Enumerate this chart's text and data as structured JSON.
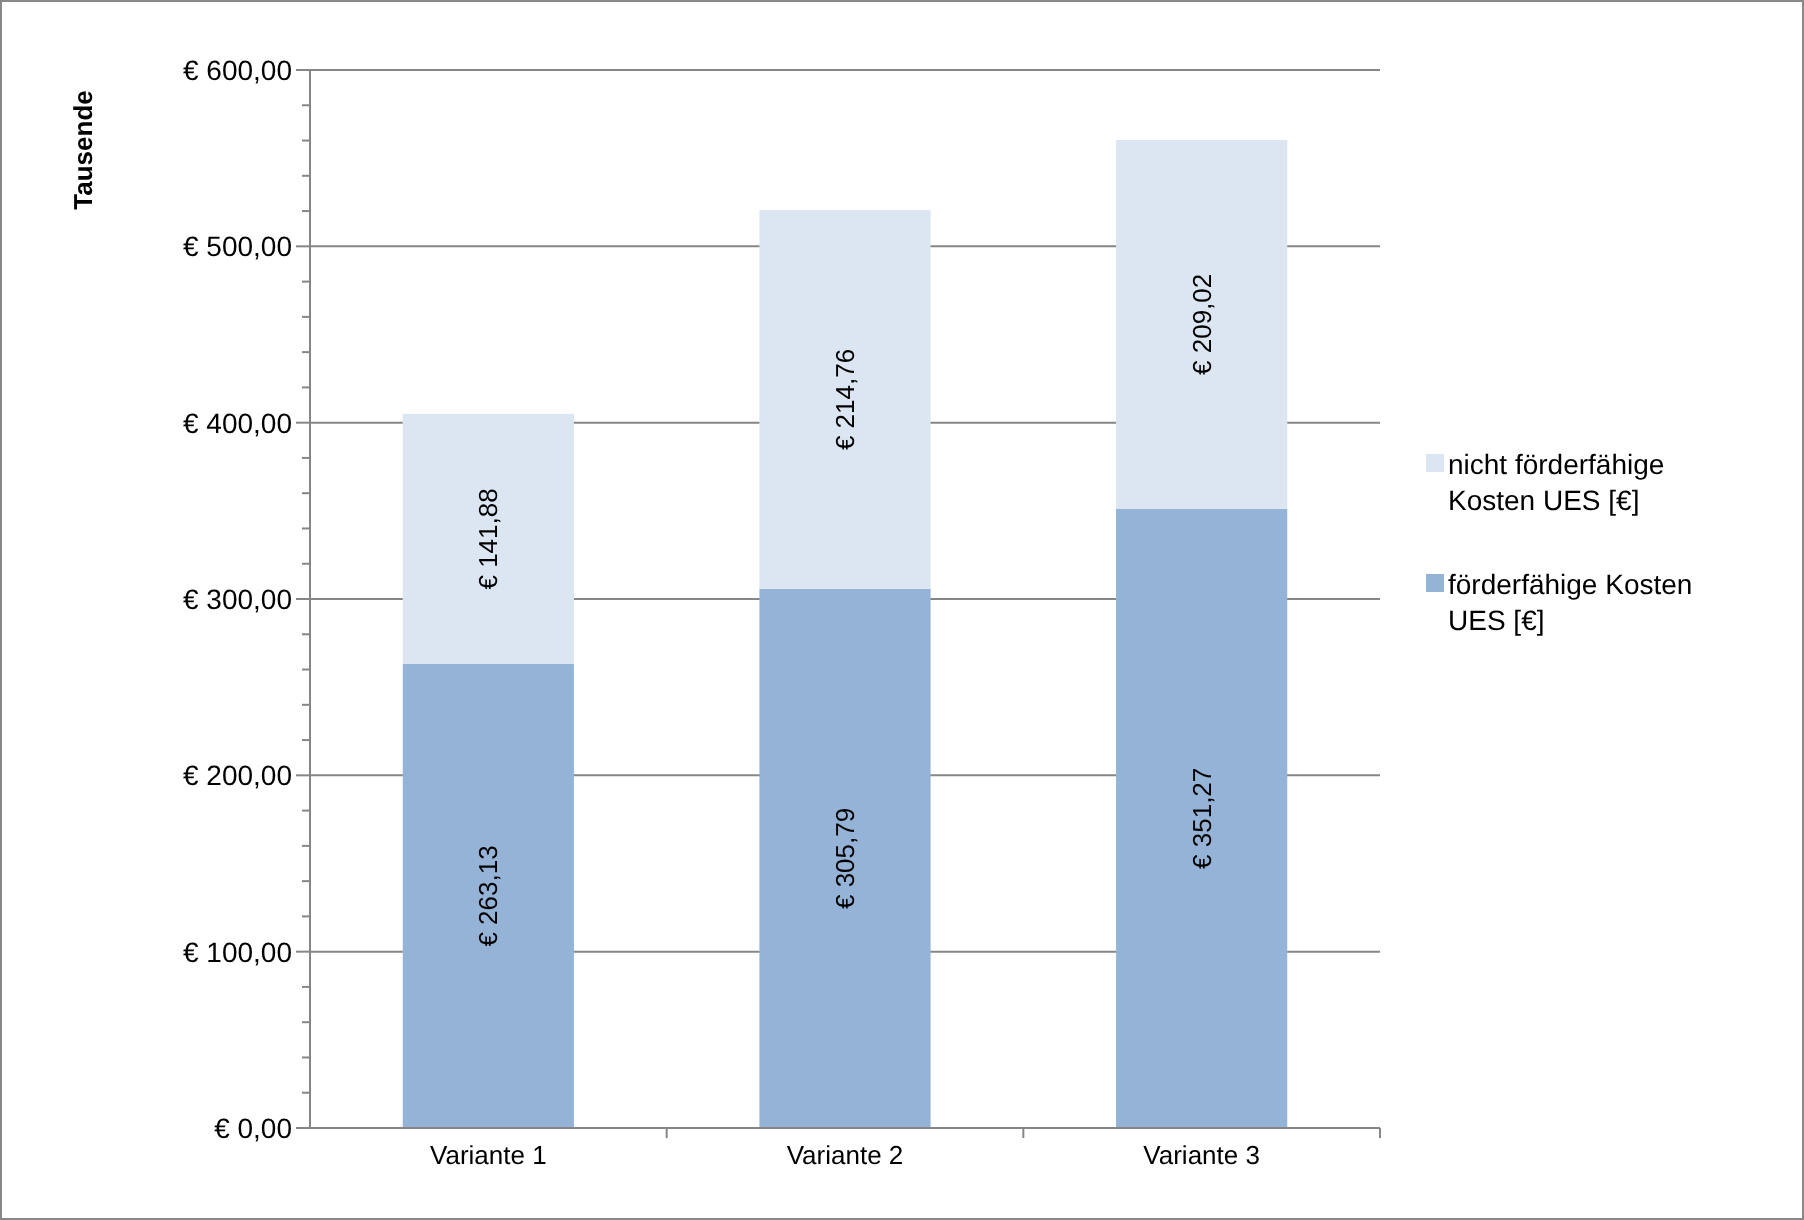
{
  "chart_data": {
    "type": "bar",
    "stacked": true,
    "ylabel": "Tausende",
    "categories": [
      "Variante 1",
      "Variante 2",
      "Variante 3"
    ],
    "series": [
      {
        "name": "förderfähige Kosten UES [€]",
        "color": "#95b3d7",
        "values": [
          263.13,
          305.79,
          351.27
        ],
        "value_labels": [
          "€ 263,13",
          "€ 305,79",
          "€ 351,27"
        ]
      },
      {
        "name": "nicht förderfähige Kosten UES [€]",
        "color": "#dce6f2",
        "values": [
          141.88,
          214.76,
          209.02
        ],
        "value_labels": [
          "€ 141,88",
          "€ 214,76",
          "€ 209,02"
        ]
      }
    ],
    "ylim": [
      0,
      600
    ],
    "yticks": [
      {
        "value": 0,
        "label": "€ 0,00"
      },
      {
        "value": 20,
        "label": null
      },
      {
        "value": 40,
        "label": null
      },
      {
        "value": 60,
        "label": null
      },
      {
        "value": 80,
        "label": null
      },
      {
        "value": 100,
        "label": "€ 100,00"
      },
      {
        "value": 120,
        "label": null
      },
      {
        "value": 140,
        "label": null
      },
      {
        "value": 160,
        "label": null
      },
      {
        "value": 180,
        "label": null
      },
      {
        "value": 200,
        "label": "€ 200,00"
      },
      {
        "value": 220,
        "label": null
      },
      {
        "value": 240,
        "label": null
      },
      {
        "value": 260,
        "label": null
      },
      {
        "value": 280,
        "label": null
      },
      {
        "value": 300,
        "label": "€ 300,00"
      },
      {
        "value": 320,
        "label": null
      },
      {
        "value": 340,
        "label": null
      },
      {
        "value": 360,
        "label": null
      },
      {
        "value": 380,
        "label": null
      },
      {
        "value": 400,
        "label": "€ 400,00"
      },
      {
        "value": 420,
        "label": null
      },
      {
        "value": 440,
        "label": null
      },
      {
        "value": 460,
        "label": null
      },
      {
        "value": 480,
        "label": null
      },
      {
        "value": 500,
        "label": "€ 500,00"
      },
      {
        "value": 520,
        "label": null
      },
      {
        "value": 540,
        "label": null
      },
      {
        "value": 560,
        "label": null
      },
      {
        "value": 580,
        "label": null
      },
      {
        "value": 600,
        "label": "€ 600,00"
      }
    ],
    "grid": "y",
    "legend": "right"
  }
}
